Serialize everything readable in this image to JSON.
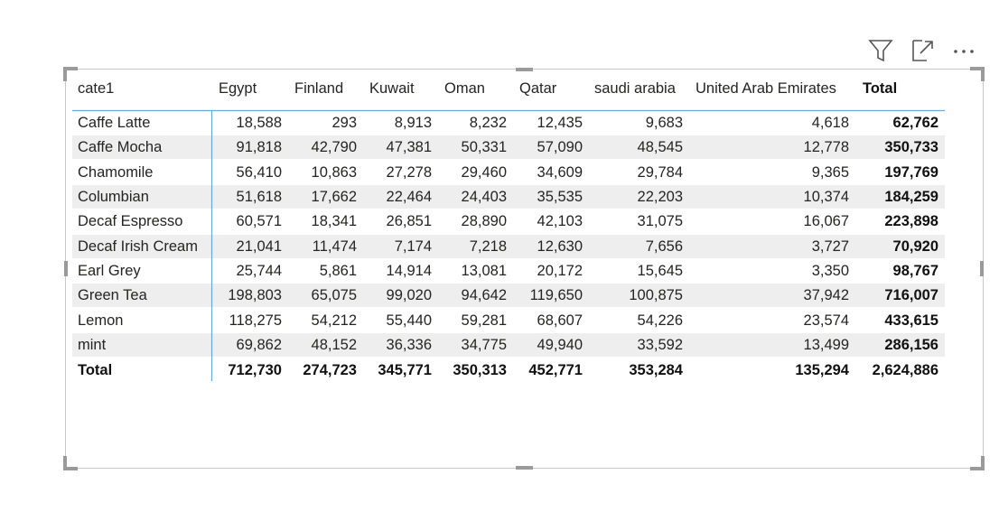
{
  "table": {
    "header": [
      "cate1",
      "Egypt",
      "Finland",
      "Kuwait",
      "Oman",
      "Qatar",
      "saudi arabia",
      "United Arab Emirates",
      "Total"
    ],
    "rows": [
      [
        "Caffe Latte",
        "18,588",
        "293",
        "8,913",
        "8,232",
        "12,435",
        "9,683",
        "4,618",
        "62,762"
      ],
      [
        "Caffe Mocha",
        "91,818",
        "42,790",
        "47,381",
        "50,331",
        "57,090",
        "48,545",
        "12,778",
        "350,733"
      ],
      [
        "Chamomile",
        "56,410",
        "10,863",
        "27,278",
        "29,460",
        "34,609",
        "29,784",
        "9,365",
        "197,769"
      ],
      [
        "Columbian",
        "51,618",
        "17,662",
        "22,464",
        "24,403",
        "35,535",
        "22,203",
        "10,374",
        "184,259"
      ],
      [
        "Decaf Espresso",
        "60,571",
        "18,341",
        "26,851",
        "28,890",
        "42,103",
        "31,075",
        "16,067",
        "223,898"
      ],
      [
        "Decaf Irish Cream",
        "21,041",
        "11,474",
        "7,174",
        "7,218",
        "12,630",
        "7,656",
        "3,727",
        "70,920"
      ],
      [
        "Earl Grey",
        "25,744",
        "5,861",
        "14,914",
        "13,081",
        "20,172",
        "15,645",
        "3,350",
        "98,767"
      ],
      [
        "Green Tea",
        "198,803",
        "65,075",
        "99,020",
        "94,642",
        "119,650",
        "100,875",
        "37,942",
        "716,007"
      ],
      [
        "Lemon",
        "118,275",
        "54,212",
        "55,440",
        "59,281",
        "68,607",
        "54,226",
        "23,574",
        "433,615"
      ],
      [
        "mint",
        "69,862",
        "48,152",
        "36,336",
        "34,775",
        "49,940",
        "33,592",
        "13,499",
        "286,156"
      ]
    ],
    "total": [
      "Total",
      "712,730",
      "274,723",
      "345,771",
      "350,313",
      "452,771",
      "353,284",
      "135,294",
      "2,624,886"
    ]
  }
}
